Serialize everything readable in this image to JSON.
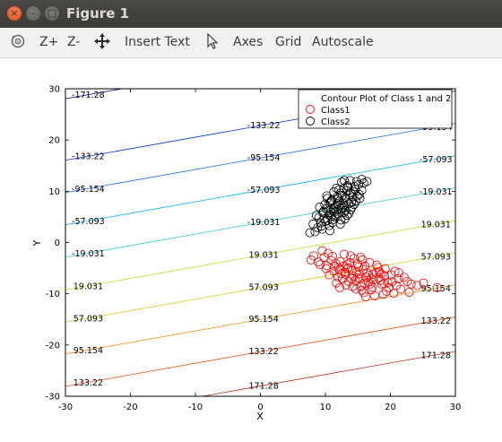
{
  "window": {
    "title": "Figure 1",
    "close_glyph": "×",
    "min_glyph": "–",
    "max_glyph": "□"
  },
  "toolbar": {
    "reset_icon": "rotate-icon",
    "zoom_in_label": "Z+",
    "zoom_out_label": "Z-",
    "pan_icon": "move-icon",
    "insert_text_label": "Insert Text",
    "select_icon": "pointer-icon",
    "axes_label": "Axes",
    "grid_label": "Grid",
    "autoscale_label": "Autoscale"
  },
  "chart_data": {
    "type": "scatter",
    "title": "",
    "xlabel": "X",
    "ylabel": "Y",
    "xlim": [
      -30,
      30
    ],
    "ylim": [
      -30,
      30
    ],
    "xticks": [
      -30,
      -20,
      -10,
      0,
      10,
      20,
      30
    ],
    "yticks": [
      -30,
      -20,
      -10,
      0,
      10,
      20,
      30
    ],
    "grid": false,
    "legend_position": "top-right",
    "legend": [
      "Contour Plot of Class 1 and 2",
      "Class1",
      "Class2"
    ],
    "contours": {
      "slope": 0.225,
      "levels": [
        {
          "label": "-171.28",
          "intercept": 34.8,
          "color": "#0000a0"
        },
        {
          "label": "-133.22",
          "intercept": 22.8,
          "color": "#0033cc"
        },
        {
          "label": "-95.154",
          "intercept": 16.5,
          "color": "#1a66e6"
        },
        {
          "label": "-57.093",
          "intercept": 10.2,
          "color": "#00b3e6"
        },
        {
          "label": "-19.031",
          "intercept": 3.9,
          "color": "#33cccc"
        },
        {
          "label": "19.031",
          "intercept": -2.5,
          "color": "#b3e633"
        },
        {
          "label": "57.093",
          "intercept": -8.8,
          "color": "#d9cc1a"
        },
        {
          "label": "95.154",
          "intercept": -15.0,
          "color": "#e69919"
        },
        {
          "label": "133.22",
          "intercept": -21.3,
          "color": "#e64d19"
        },
        {
          "label": "171.28",
          "intercept": -28.0,
          "color": "#b3331a"
        }
      ]
    },
    "series": [
      {
        "name": "Class1",
        "color": "#ff0000",
        "points": [
          [
            15.2,
            -6.1
          ],
          [
            14.1,
            -5.5
          ],
          [
            16.3,
            -6.8
          ],
          [
            13.5,
            -4.9
          ],
          [
            17.4,
            -7.3
          ],
          [
            12.8,
            -4.6
          ],
          [
            15.8,
            -5.3
          ],
          [
            18.2,
            -6.9
          ],
          [
            11.6,
            -4.1
          ],
          [
            16.9,
            -8.1
          ],
          [
            14.6,
            -7.4
          ],
          [
            13.1,
            -6.2
          ],
          [
            19.1,
            -6.5
          ],
          [
            12.3,
            -3.7
          ],
          [
            17.8,
            -5.8
          ],
          [
            20.3,
            -7.6
          ],
          [
            10.9,
            -3.5
          ],
          [
            15.5,
            -8.6
          ],
          [
            13.8,
            -3.9
          ],
          [
            18.7,
            -8.2
          ],
          [
            21.2,
            -7.1
          ],
          [
            9.8,
            -2.9
          ],
          [
            16.1,
            -4.6
          ],
          [
            12.1,
            -5.3
          ],
          [
            14.9,
            -4.1
          ],
          [
            17.1,
            -9.2
          ],
          [
            19.8,
            -8.8
          ],
          [
            11.3,
            -5.6
          ],
          [
            22.1,
            -6.8
          ],
          [
            8.9,
            -3.8
          ],
          [
            15.9,
            -9.8
          ],
          [
            13.2,
            -8.3
          ],
          [
            18.1,
            -4.9
          ],
          [
            20.7,
            -5.6
          ],
          [
            10.4,
            -2.1
          ],
          [
            16.6,
            -7.7
          ],
          [
            14.3,
            -6.6
          ],
          [
            12.6,
            -7.1
          ],
          [
            23.2,
            -8.1
          ],
          [
            9.5,
            -1.6
          ],
          [
            17.3,
            -6.2
          ],
          [
            15.1,
            -4.8
          ],
          [
            19.4,
            -9.5
          ],
          [
            11.9,
            -6.7
          ],
          [
            21.6,
            -9.1
          ],
          [
            13.9,
            -2.6
          ],
          [
            16.4,
            -5.9
          ],
          [
            18.5,
            -7.4
          ],
          [
            10.2,
            -4.5
          ],
          [
            14.7,
            -9.1
          ],
          [
            12.9,
            -2.3
          ],
          [
            20.1,
            -6.3
          ],
          [
            17.6,
            -10.4
          ],
          [
            15.3,
            -7.1
          ],
          [
            8.2,
            -2.6
          ],
          [
            22.6,
            -7.6
          ],
          [
            13.4,
            -5.1
          ],
          [
            16.8,
            -3.9
          ],
          [
            19.2,
            -5.1
          ],
          [
            11.1,
            -2.7
          ],
          [
            14.2,
            -8.6
          ],
          [
            18.9,
            -10.1
          ],
          [
            15.7,
            -3.4
          ],
          [
            12.4,
            -6.1
          ],
          [
            17.2,
            -8.7
          ],
          [
            9.2,
            -4.3
          ],
          [
            20.9,
            -8.4
          ],
          [
            13.6,
            -7.6
          ],
          [
            16.2,
            -10.6
          ],
          [
            14.4,
            -3.1
          ],
          [
            11.7,
            -7.9
          ],
          [
            19.6,
            -7.8
          ],
          [
            25.1,
            -7.9
          ],
          [
            27.2,
            -8.8
          ],
          [
            17.9,
            -4.4
          ],
          [
            12.2,
            -8.8
          ],
          [
            15.6,
            -9.3
          ],
          [
            21.3,
            -5.9
          ],
          [
            10.6,
            -6.3
          ],
          [
            16.7,
            -6.4
          ],
          [
            14.8,
            -5.8
          ],
          [
            18.3,
            -5.7
          ],
          [
            13.3,
            -4.3
          ],
          [
            15.0,
            -6.9
          ],
          [
            17.0,
            -7.0
          ],
          [
            12.0,
            -4.9
          ],
          [
            19.0,
            -8.0
          ],
          [
            14.0,
            -7.0
          ],
          [
            16.0,
            -8.0
          ],
          [
            13.0,
            -5.8
          ],
          [
            20.5,
            -9.9
          ],
          [
            22.9,
            -9.7
          ],
          [
            11.4,
            -4.6
          ],
          [
            18.6,
            -6.1
          ],
          [
            15.4,
            -2.9
          ],
          [
            10.1,
            -5.1
          ],
          [
            7.8,
            -3.4
          ],
          [
            24.1,
            -8.4
          ]
        ]
      },
      {
        "name": "Class2",
        "color": "#000000",
        "points": [
          [
            11.2,
            6.1
          ],
          [
            12.1,
            7.3
          ],
          [
            10.5,
            5.4
          ],
          [
            13.2,
            8.4
          ],
          [
            9.8,
            4.6
          ],
          [
            12.6,
            6.8
          ],
          [
            11.8,
            8.9
          ],
          [
            10.1,
            6.6
          ],
          [
            13.9,
            9.7
          ],
          [
            12.9,
            5.9
          ],
          [
            9.3,
            3.8
          ],
          [
            14.6,
            10.4
          ],
          [
            11.5,
            4.9
          ],
          [
            10.8,
            7.9
          ],
          [
            13.6,
            7.6
          ],
          [
            12.3,
            9.6
          ],
          [
            8.8,
            2.9
          ],
          [
            14.2,
            8.9
          ],
          [
            11.1,
            3.9
          ],
          [
            15.1,
            11.3
          ],
          [
            10.3,
            8.6
          ],
          [
            12.8,
            10.6
          ],
          [
            13.1,
            6.3
          ],
          [
            9.6,
            5.8
          ],
          [
            14.9,
            9.1
          ],
          [
            11.9,
            5.6
          ],
          [
            8.4,
            2.1
          ],
          [
            13.4,
            11.1
          ],
          [
            10.6,
            3.3
          ],
          [
            15.6,
            10.2
          ],
          [
            12.4,
            4.4
          ],
          [
            11.3,
            9.9
          ],
          [
            9.1,
            6.9
          ],
          [
            14.4,
            7.4
          ],
          [
            13.8,
            12.1
          ],
          [
            10.9,
            5.1
          ],
          [
            12.2,
            8.1
          ],
          [
            15.3,
            8.6
          ],
          [
            8.1,
            3.6
          ],
          [
            11.6,
            7.1
          ],
          [
            13.3,
            5.3
          ],
          [
            10.0,
            4.1
          ],
          [
            14.8,
            11.9
          ],
          [
            12.7,
            7.7
          ],
          [
            9.5,
            2.6
          ],
          [
            11.0,
            8.3
          ],
          [
            13.7,
            9.3
          ],
          [
            10.4,
            6.2
          ],
          [
            15.9,
            11.6
          ],
          [
            12.0,
            6.4
          ],
          [
            7.6,
            1.9
          ],
          [
            14.1,
            6.9
          ],
          [
            11.7,
            10.6
          ],
          [
            9.9,
            7.4
          ],
          [
            13.0,
            4.6
          ],
          [
            12.5,
            11.8
          ],
          [
            10.7,
            2.3
          ],
          [
            14.3,
            9.9
          ],
          [
            11.4,
            5.9
          ],
          [
            16.4,
            11.9
          ],
          [
            9.0,
            4.9
          ],
          [
            13.5,
            10.8
          ],
          [
            12.3,
            3.6
          ],
          [
            10.2,
            9.1
          ],
          [
            14.7,
            8.1
          ],
          [
            11.8,
            7.6
          ],
          [
            8.6,
            5.3
          ],
          [
            13.9,
            6.4
          ],
          [
            12.6,
            9.2
          ],
          [
            10.6,
            7.7
          ],
          [
            15.2,
            9.4
          ],
          [
            11.1,
            4.4
          ],
          [
            13.1,
            8.8
          ],
          [
            9.7,
            6.1
          ],
          [
            12.9,
            12.1
          ],
          [
            14.5,
            10.9
          ],
          [
            10.8,
            5.9
          ],
          [
            11.9,
            8.6
          ],
          [
            13.6,
            5.6
          ],
          [
            9.4,
            3.2
          ],
          [
            12.1,
            10.3
          ],
          [
            15.6,
            12.3
          ],
          [
            10.3,
            4.3
          ],
          [
            14.0,
            7.8
          ],
          [
            11.3,
            6.7
          ],
          [
            12.8,
            7.2
          ],
          [
            13.3,
            10.1
          ],
          [
            10.9,
            8.1
          ],
          [
            11.6,
            5.2
          ],
          [
            12.4,
            6.6
          ]
        ]
      }
    ]
  }
}
